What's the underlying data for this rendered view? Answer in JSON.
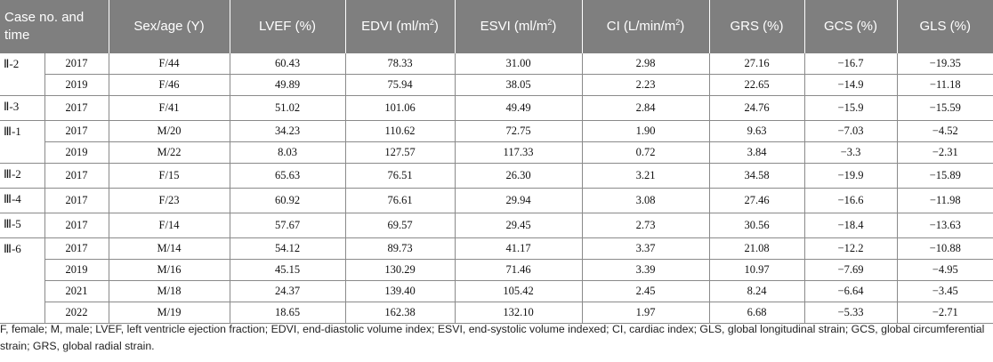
{
  "table": {
    "columns": [
      {
        "label": "Case no. and time"
      },
      {
        "label": "Sex/age (Y)"
      },
      {
        "label": "LVEF (%)"
      },
      {
        "label": "EDVI (ml/m",
        "sup": "2",
        "tail": ")"
      },
      {
        "label": "ESVI (ml/m",
        "sup": "2",
        "tail": ")"
      },
      {
        "label": "CI (L/min/m",
        "sup": "2",
        "tail": ")"
      },
      {
        "label": "GRS (%)"
      },
      {
        "label": "GCS (%)"
      },
      {
        "label": "GLS (%)"
      }
    ],
    "groups": [
      {
        "case": "Ⅱ-2",
        "rows": [
          [
            "2017",
            "F/44",
            "60.43",
            "78.33",
            "31.00",
            "2.98",
            "27.16",
            "−16.7",
            "−19.35"
          ],
          [
            "2019",
            "F/46",
            "49.89",
            "75.94",
            "38.05",
            "2.23",
            "22.65",
            "−14.9",
            "−11.18"
          ]
        ]
      },
      {
        "case": "Ⅱ-3",
        "rows": [
          [
            "2017",
            "F/41",
            "51.02",
            "101.06",
            "49.49",
            "2.84",
            "24.76",
            "−15.9",
            "−15.59"
          ]
        ]
      },
      {
        "case": "Ⅲ-1",
        "rows": [
          [
            "2017",
            "M/20",
            "34.23",
            "110.62",
            "72.75",
            "1.90",
            "9.63",
            "−7.03",
            "−4.52"
          ],
          [
            "2019",
            "M/22",
            "8.03",
            "127.57",
            "117.33",
            "0.72",
            "3.84",
            "−3.3",
            "−2.31"
          ]
        ]
      },
      {
        "case": "Ⅲ-2",
        "rows": [
          [
            "2017",
            "F/15",
            "65.63",
            "76.51",
            "26.30",
            "3.21",
            "34.58",
            "−19.9",
            "−15.89"
          ]
        ]
      },
      {
        "case": "Ⅲ-4",
        "rows": [
          [
            "2017",
            "F/23",
            "60.92",
            "76.61",
            "29.94",
            "3.08",
            "27.46",
            "−16.6",
            "−11.98"
          ]
        ]
      },
      {
        "case": "Ⅲ-5",
        "rows": [
          [
            "2017",
            "F/14",
            "57.67",
            "69.57",
            "29.45",
            "2.73",
            "30.56",
            "−18.4",
            "−13.63"
          ]
        ]
      },
      {
        "case": "Ⅲ-6",
        "rows": [
          [
            "2017",
            "M/14",
            "54.12",
            "89.73",
            "41.17",
            "3.37",
            "21.08",
            "−12.2",
            "−10.88"
          ],
          [
            "2019",
            "M/16",
            "45.15",
            "130.29",
            "71.46",
            "3.39",
            "10.97",
            "−7.69",
            "−4.95"
          ],
          [
            "2021",
            "M/18",
            "24.37",
            "139.40",
            "105.42",
            "2.45",
            "8.24",
            "−6.64",
            "−3.45"
          ],
          [
            "2022",
            "M/19",
            "18.65",
            "162.38",
            "132.10",
            "1.97",
            "6.68",
            "−5.33",
            "−2.71"
          ]
        ]
      }
    ]
  },
  "footnote": "F, female; M, male; LVEF, left ventricle ejection fraction; EDVI, end-diastolic volume index; ESVI, end-systolic volume indexed; CI, cardiac index; GLS, global longitudinal strain; GCS, global circumferential strain; GRS, global radial strain."
}
